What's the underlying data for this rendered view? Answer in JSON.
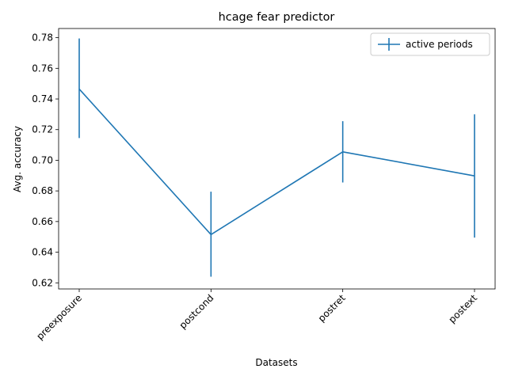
{
  "chart_data": {
    "type": "line",
    "title": "hcage fear predictor",
    "xlabel": "Datasets",
    "ylabel": "Avg. accuracy",
    "categories": [
      "preexposure",
      "postcond",
      "postret",
      "postext"
    ],
    "series": [
      {
        "name": "active periods",
        "values": [
          0.7465,
          0.6515,
          0.7055,
          0.6898
        ],
        "err_low": [
          0.7145,
          0.624,
          0.6855,
          0.6495
        ],
        "err_high": [
          0.7795,
          0.6795,
          0.7255,
          0.73
        ]
      }
    ],
    "ylim": [
      0.616,
      0.786
    ],
    "yticks": [
      0.62,
      0.64,
      0.66,
      0.68,
      0.7,
      0.72,
      0.74,
      0.76,
      0.78
    ],
    "ytick_labels": [
      "0.62",
      "0.64",
      "0.66",
      "0.68",
      "0.70",
      "0.72",
      "0.74",
      "0.76",
      "0.78"
    ],
    "xtick_rotation": 45,
    "grid": false,
    "legend_position": "top-right",
    "color": "#1f77b4"
  }
}
